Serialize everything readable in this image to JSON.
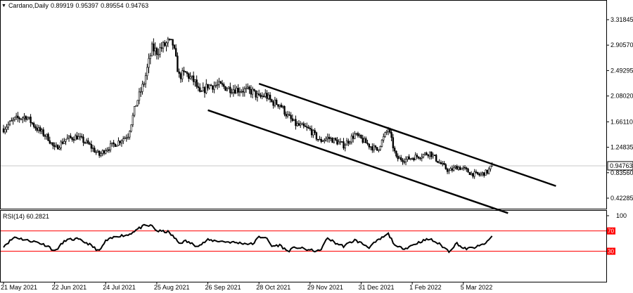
{
  "symbol": "Cardano,Daily",
  "ohlc": {
    "open": "0.89919",
    "high": "0.95397",
    "low": "0.89554",
    "close": "0.94763"
  },
  "rsi_label": "RSI(14) 60.2821",
  "current_price_label": "0.94763",
  "colors": {
    "background": "#ffffff",
    "grid": "#c8c8c8",
    "candle": "#000000",
    "channel": "#000000",
    "rsi_line": "#000000",
    "rsi_levels": "#ff0000",
    "price_box_bg": "#ffffff"
  },
  "chart_data": [
    {
      "type": "candlestick",
      "title": "Cardano,Daily",
      "y_ticks": [
        "3.31845",
        "2.90570",
        "2.49295",
        "2.08020",
        "1.66110",
        "1.24835",
        "0.83560",
        "0.42285"
      ],
      "ylim": [
        0.22,
        3.45
      ],
      "x_ticks": [
        "21 May 2021",
        "22 Jun 2021",
        "24 Jul 2021",
        "25 Aug 2021",
        "26 Sep 2021",
        "28 Oct 2021",
        "29 Nov 2021",
        "31 Dec 2021",
        "1 Feb 2022",
        "5 Mar 2022"
      ],
      "price_path": [
        [
          "2021-05-21",
          1.55
        ],
        [
          "2021-05-28",
          1.7
        ],
        [
          "2021-06-04",
          1.75
        ],
        [
          "2021-06-11",
          1.55
        ],
        [
          "2021-06-18",
          1.4
        ],
        [
          "2021-06-22",
          1.22
        ],
        [
          "2021-06-29",
          1.38
        ],
        [
          "2021-07-06",
          1.42
        ],
        [
          "2021-07-13",
          1.3
        ],
        [
          "2021-07-20",
          1.12
        ],
        [
          "2021-07-24",
          1.22
        ],
        [
          "2021-07-31",
          1.32
        ],
        [
          "2021-08-07",
          1.45
        ],
        [
          "2021-08-12",
          1.95
        ],
        [
          "2021-08-17",
          2.3
        ],
        [
          "2021-08-22",
          2.85
        ],
        [
          "2021-08-25",
          2.8
        ],
        [
          "2021-09-01",
          2.95
        ],
        [
          "2021-09-04",
          2.92
        ],
        [
          "2021-09-08",
          2.4
        ],
        [
          "2021-09-12",
          2.45
        ],
        [
          "2021-09-18",
          2.3
        ],
        [
          "2021-09-21",
          2.1
        ],
        [
          "2021-09-26",
          2.25
        ],
        [
          "2021-10-03",
          2.25
        ],
        [
          "2021-10-10",
          2.2
        ],
        [
          "2021-10-17",
          2.18
        ],
        [
          "2021-10-24",
          2.15
        ],
        [
          "2021-10-28",
          2.05
        ],
        [
          "2021-11-01",
          2.1
        ],
        [
          "2021-11-05",
          1.98
        ],
        [
          "2021-11-10",
          1.95
        ],
        [
          "2021-11-15",
          1.75
        ],
        [
          "2021-11-20",
          1.62
        ],
        [
          "2021-11-29",
          1.53
        ],
        [
          "2021-12-05",
          1.35
        ],
        [
          "2021-12-10",
          1.4
        ],
        [
          "2021-12-15",
          1.35
        ],
        [
          "2021-12-20",
          1.28
        ],
        [
          "2021-12-27",
          1.45
        ],
        [
          "2021-12-31",
          1.38
        ],
        [
          "2022-01-05",
          1.28
        ],
        [
          "2022-01-10",
          1.2
        ],
        [
          "2022-01-17",
          1.55
        ],
        [
          "2022-01-22",
          1.07
        ],
        [
          "2022-01-28",
          1.05
        ],
        [
          "2022-02-01",
          1.08
        ],
        [
          "2022-02-07",
          1.12
        ],
        [
          "2022-02-12",
          1.16
        ],
        [
          "2022-02-18",
          1.0
        ],
        [
          "2022-02-24",
          0.86
        ],
        [
          "2022-03-01",
          0.93
        ],
        [
          "2022-03-05",
          0.9
        ],
        [
          "2022-03-10",
          0.82
        ],
        [
          "2022-03-15",
          0.8
        ],
        [
          "2022-03-20",
          0.85
        ],
        [
          "2022-03-23",
          0.95
        ]
      ],
      "channel_upper": [
        [
          "2021-10-28",
          2.28
        ],
        [
          "2022-05-02",
          0.62
        ]
      ],
      "channel_lower": [
        [
          "2021-09-26",
          1.85
        ],
        [
          "2022-04-02",
          0.18
        ]
      ]
    },
    {
      "type": "line",
      "title": "RSI(14) 60.2821",
      "ylim": [
        0,
        100
      ],
      "y_ticks": [
        "100",
        "70",
        "30"
      ],
      "levels": [
        70,
        30
      ],
      "values": [
        [
          "2021-05-21",
          40
        ],
        [
          "2021-05-28",
          58
        ],
        [
          "2021-06-04",
          52
        ],
        [
          "2021-06-11",
          48
        ],
        [
          "2021-06-18",
          40
        ],
        [
          "2021-06-22",
          30
        ],
        [
          "2021-06-29",
          52
        ],
        [
          "2021-07-06",
          54
        ],
        [
          "2021-07-13",
          45
        ],
        [
          "2021-07-20",
          30
        ],
        [
          "2021-07-24",
          50
        ],
        [
          "2021-07-31",
          60
        ],
        [
          "2021-08-07",
          62
        ],
        [
          "2021-08-12",
          72
        ],
        [
          "2021-08-17",
          80
        ],
        [
          "2021-08-22",
          80
        ],
        [
          "2021-08-25",
          70
        ],
        [
          "2021-09-01",
          68
        ],
        [
          "2021-09-04",
          60
        ],
        [
          "2021-09-08",
          46
        ],
        [
          "2021-09-12",
          50
        ],
        [
          "2021-09-18",
          42
        ],
        [
          "2021-09-21",
          42
        ],
        [
          "2021-09-26",
          52
        ],
        [
          "2021-10-03",
          50
        ],
        [
          "2021-10-10",
          48
        ],
        [
          "2021-10-17",
          46
        ],
        [
          "2021-10-24",
          44
        ],
        [
          "2021-10-28",
          58
        ],
        [
          "2021-11-01",
          58
        ],
        [
          "2021-11-05",
          40
        ],
        [
          "2021-11-10",
          42
        ],
        [
          "2021-11-15",
          30
        ],
        [
          "2021-11-20",
          38
        ],
        [
          "2021-11-29",
          32
        ],
        [
          "2021-12-05",
          30
        ],
        [
          "2021-12-10",
          56
        ],
        [
          "2021-12-15",
          46
        ],
        [
          "2021-12-20",
          40
        ],
        [
          "2021-12-27",
          52
        ],
        [
          "2021-12-31",
          46
        ],
        [
          "2022-01-05",
          38
        ],
        [
          "2022-01-10",
          50
        ],
        [
          "2022-01-17",
          64
        ],
        [
          "2022-01-22",
          38
        ],
        [
          "2022-01-28",
          36
        ],
        [
          "2022-02-01",
          42
        ],
        [
          "2022-02-07",
          50
        ],
        [
          "2022-02-12",
          54
        ],
        [
          "2022-02-18",
          44
        ],
        [
          "2022-02-24",
          30
        ],
        [
          "2022-03-01",
          46
        ],
        [
          "2022-03-05",
          35
        ],
        [
          "2022-03-10",
          36
        ],
        [
          "2022-03-15",
          40
        ],
        [
          "2022-03-20",
          48
        ],
        [
          "2022-03-23",
          60
        ]
      ]
    }
  ]
}
